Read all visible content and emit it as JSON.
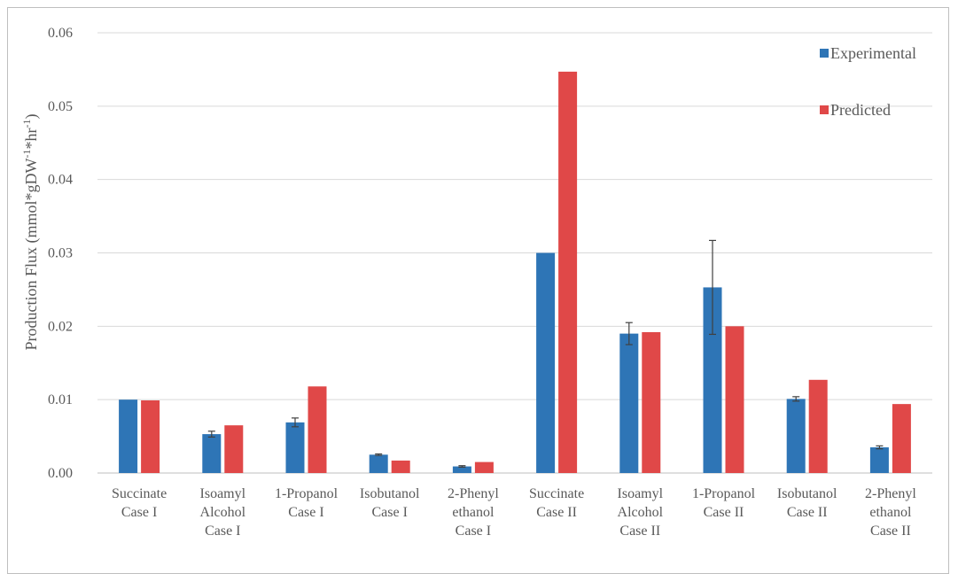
{
  "chart_data": {
    "type": "bar",
    "title": "",
    "xlabel": "",
    "ylabel": "Production Flux  (mmol*gDW",
    "ylabel_sup1": "-1",
    "ylabel_mid": "*hr",
    "ylabel_sup2": "-1",
    "ylabel_end": ")",
    "ylim": [
      0,
      0.06
    ],
    "yticks": [
      "0.00",
      "0.01",
      "0.02",
      "0.03",
      "0.04",
      "0.05",
      "0.06"
    ],
    "grid": "horizontal",
    "legend_position": "top-right",
    "categories": [
      [
        "Succinate",
        "Case I"
      ],
      [
        "Isoamyl",
        "Alcohol",
        "Case I"
      ],
      [
        "1-Propanol",
        "Case I"
      ],
      [
        "Isobutanol",
        "Case I"
      ],
      [
        "2-Phenyl",
        "ethanol",
        "Case I"
      ],
      [
        "Succinate",
        "Case II"
      ],
      [
        "Isoamyl",
        "Alcohol",
        "Case II"
      ],
      [
        "1-Propanol",
        "Case II"
      ],
      [
        "Isobutanol",
        "Case II"
      ],
      [
        "2-Phenyl",
        "ethanol",
        "Case II"
      ]
    ],
    "series": [
      {
        "name": "Experimental",
        "color": "#2e75b6",
        "values": [
          0.01,
          0.0053,
          0.0069,
          0.0025,
          0.0009,
          0.03,
          0.019,
          0.0253,
          0.0101,
          0.0035
        ],
        "errors": [
          0.0,
          0.0004,
          0.0006,
          0.0001,
          0.0001,
          0.0,
          0.0015,
          0.0064,
          0.0003,
          0.0002
        ]
      },
      {
        "name": "Predicted",
        "color": "#e04848",
        "values": [
          0.0099,
          0.0065,
          0.0118,
          0.0017,
          0.0015,
          0.0547,
          0.0192,
          0.02,
          0.0127,
          0.0094
        ]
      }
    ]
  }
}
